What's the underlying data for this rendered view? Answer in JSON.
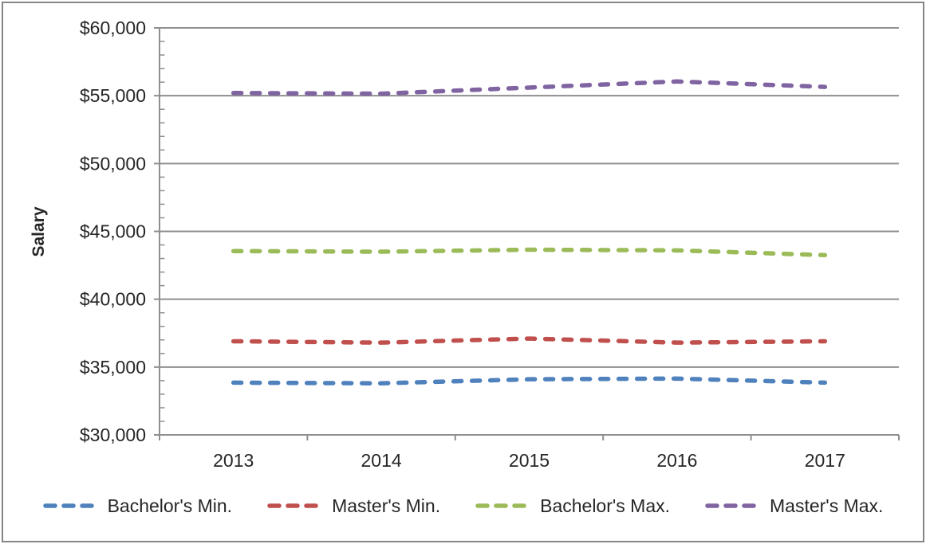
{
  "chart_data": {
    "type": "line",
    "title": "",
    "xlabel": "",
    "ylabel": "Salary",
    "x": [
      "2013",
      "2014",
      "2015",
      "2016",
      "2017"
    ],
    "series": [
      {
        "name": "Bachelor's Min.",
        "color": "#4F81BD",
        "values": [
          33850,
          33800,
          34100,
          34150,
          33850
        ]
      },
      {
        "name": "Master's Min.",
        "color": "#C0504D",
        "values": [
          36900,
          36800,
          37100,
          36800,
          36900
        ]
      },
      {
        "name": "Bachelor's Max.",
        "color": "#9BBB59",
        "values": [
          43550,
          43500,
          43650,
          43600,
          43250
        ]
      },
      {
        "name": "Master's Max.",
        "color": "#8064A2",
        "values": [
          55200,
          55150,
          55600,
          56050,
          55650
        ]
      }
    ],
    "ylim": [
      30000,
      60000
    ],
    "ytick_step": 5000,
    "yminor_step": 1000,
    "y_tick_labels": [
      "$30,000",
      "$35,000",
      "$40,000",
      "$45,000",
      "$50,000",
      "$55,000",
      "$60,000"
    ],
    "y_format": "$#,##0",
    "line_style": "dashed",
    "grid": true,
    "legend_position": "bottom"
  },
  "colors": {
    "grid": "#8f8f8f",
    "axis": "#8f8f8f",
    "text": "#262626",
    "frame_border": "#858585",
    "background": "#ffffff"
  }
}
